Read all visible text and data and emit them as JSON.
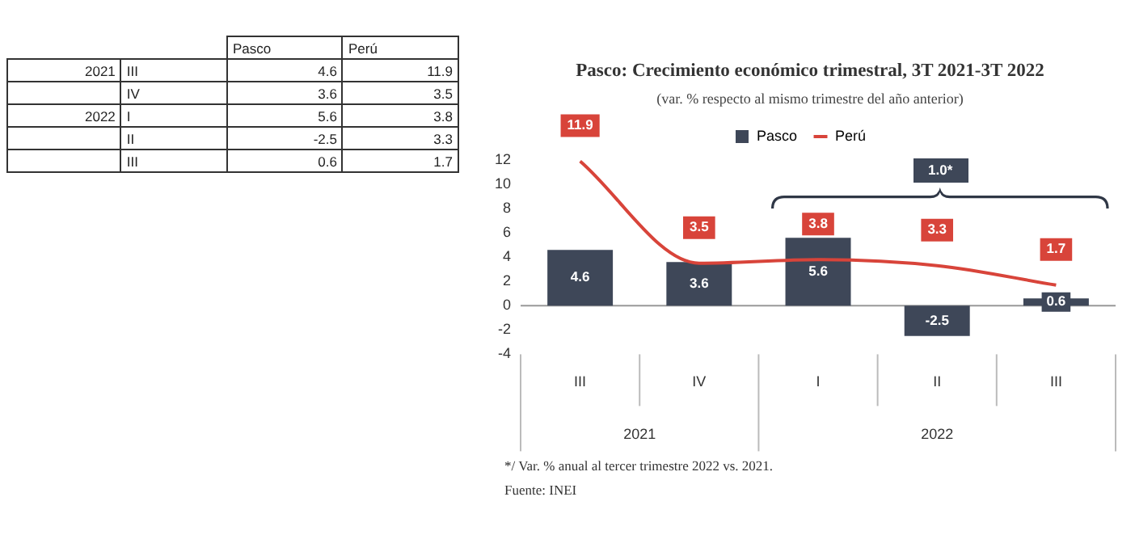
{
  "chart_data": [
    {
      "type": "other",
      "categories": [
        "III",
        "IV",
        "I",
        "II",
        "III"
      ],
      "annotations": [
        "2021",
        "2022"
      ],
      "data_labels": true,
      "series": [
        {
          "name": "Pasco",
          "values": [
            4.6,
            3.6,
            5.6,
            -2.5,
            0.6
          ]
        },
        {
          "name": "Perú",
          "values": [
            11.9,
            3.5,
            3.8,
            3.3,
            1.7
          ]
        }
      ]
    },
    {
      "type": "bar",
      "title": "Pasco: Crecimiento económico trimestral, 3T 2021-3T 2022",
      "subtitle": "(var. % respecto al mismo trimestre del año anterior)",
      "categories": [
        "III",
        "IV",
        "I",
        "II",
        "III"
      ],
      "series": [
        {
          "name": "Pasco",
          "color": "#3e4758",
          "values": [
            4.6,
            3.6,
            5.6,
            -2.5,
            0.6
          ]
        },
        {
          "name": "Perú",
          "type": "line",
          "color": "#d8443a",
          "values": [
            11.9,
            3.5,
            3.8,
            3.3,
            1.7
          ]
        }
      ],
      "ylim": [
        -4,
        12
      ],
      "yticks": [
        -4,
        -2,
        0,
        2,
        4,
        6,
        8,
        10,
        12
      ],
      "ref_lines": [
        {
          "axis": "y",
          "value": 0,
          "color": "#999999"
        }
      ],
      "legend": "top",
      "marker": "none",
      "data_labels": true,
      "annotations": [
        "2021",
        "2022",
        "1.0*",
        "*/ Var. % anual al tercer trimestre 2022 vs. 2021.",
        "Fuente: INEI"
      ]
    }
  ]
}
